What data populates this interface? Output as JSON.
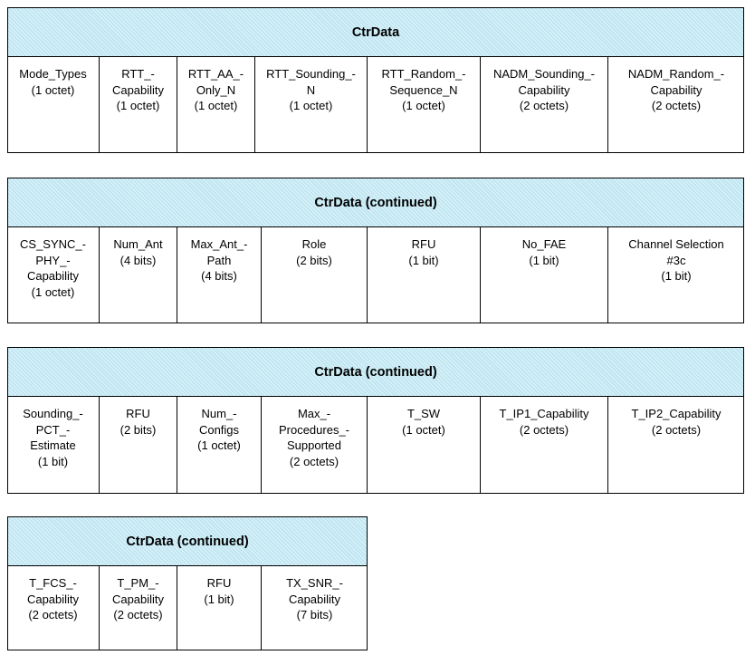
{
  "tables": [
    {
      "title": "CtrData",
      "cells": [
        {
          "lines": [
            "Mode_Types",
            "(1 octet)"
          ]
        },
        {
          "lines": [
            "RTT_-",
            "Capability",
            "(1 octet)"
          ]
        },
        {
          "lines": [
            "RTT_AA_-",
            "Only_N",
            "(1 octet)"
          ]
        },
        {
          "lines": [
            "RTT_Sounding_-",
            "N",
            "(1 octet)"
          ]
        },
        {
          "lines": [
            "RTT_Random_-",
            "Sequence_N",
            "(1 octet)"
          ]
        },
        {
          "lines": [
            "NADM_Sounding_-",
            "Capability",
            "(2 octets)"
          ]
        },
        {
          "lines": [
            "NADM_Random_-",
            "Capability",
            "(2 octets)"
          ]
        }
      ]
    },
    {
      "title": "CtrData (continued)",
      "cells": [
        {
          "lines": [
            "CS_SYNC_-",
            "PHY_-",
            "Capability",
            "(1 octet)"
          ]
        },
        {
          "lines": [
            "Num_Ant",
            "(4 bits)"
          ]
        },
        {
          "lines": [
            "Max_Ant_-",
            "Path",
            "(4 bits)"
          ]
        },
        {
          "lines": [
            "Role",
            "(2 bits)"
          ]
        },
        {
          "lines": [
            "RFU",
            "(1 bit)"
          ]
        },
        {
          "lines": [
            "No_FAE",
            "(1 bit)"
          ]
        },
        {
          "lines": [
            "Channel Selection",
            "#3c",
            "(1 bit)"
          ]
        }
      ]
    },
    {
      "title": "CtrData (continued)",
      "cells": [
        {
          "lines": [
            "Sounding_-",
            "PCT_-",
            "Estimate",
            "(1 bit)"
          ]
        },
        {
          "lines": [
            "RFU",
            "(2 bits)"
          ]
        },
        {
          "lines": [
            "Num_-",
            "Configs",
            "(1 octet)"
          ]
        },
        {
          "lines": [
            "Max_-",
            "Procedures_-",
            "Supported",
            "(2 octets)"
          ]
        },
        {
          "lines": [
            "T_SW",
            "(1 octet)"
          ]
        },
        {
          "lines": [
            "T_IP1_Capability",
            "(2 octets)"
          ]
        },
        {
          "lines": [
            "T_IP2_Capability",
            "(2 octets)"
          ]
        }
      ]
    },
    {
      "title": "CtrData (continued)",
      "cells": [
        {
          "lines": [
            "T_FCS_-",
            "Capability",
            "(2 octets)"
          ]
        },
        {
          "lines": [
            "T_PM_-",
            "Capability",
            "(2 octets)"
          ]
        },
        {
          "lines": [
            "RFU",
            "(1 bit)"
          ]
        },
        {
          "lines": [
            "TX_SNR_-",
            "Capability",
            "(7 bits)"
          ]
        }
      ]
    }
  ]
}
